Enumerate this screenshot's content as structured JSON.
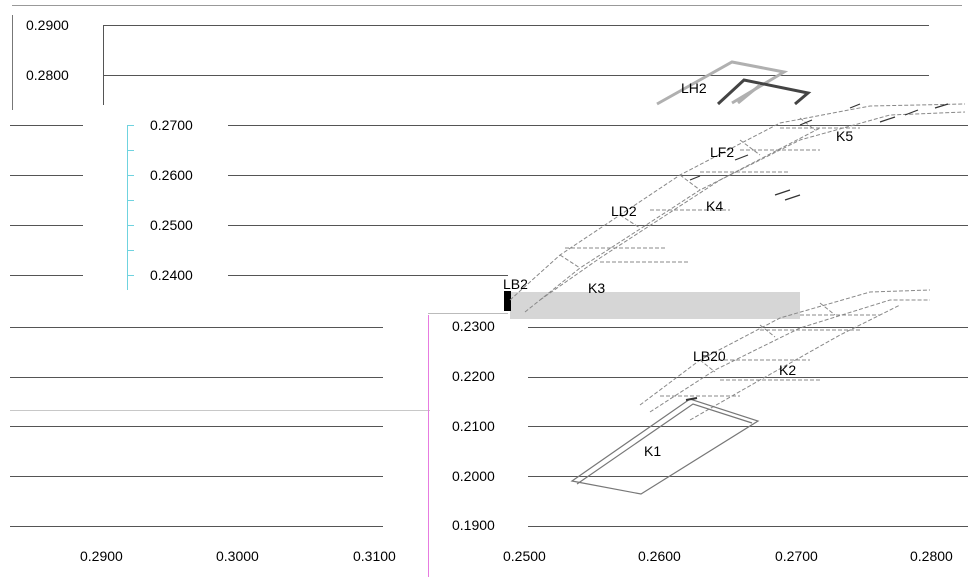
{
  "panels": {
    "back": {
      "y_ticks": [
        "0.2900",
        "0.2800"
      ],
      "x_ticks": [
        "0.2900",
        "0.3000",
        "0.3100"
      ]
    },
    "middle": {
      "y_ticks": [
        "0.2700",
        "0.2600",
        "0.2500",
        "0.2400"
      ]
    },
    "front": {
      "y_ticks": [
        "0.2300",
        "0.2200",
        "0.2100",
        "0.2000",
        "0.1900"
      ],
      "x_ticks": [
        "0.2500",
        "0.2600",
        "0.2700",
        "0.2800"
      ]
    }
  },
  "element_labels": [
    "LH2",
    "K5",
    "LF2",
    "K4",
    "LD2",
    "LB2",
    "K3",
    "LB20",
    "K2",
    "K1"
  ],
  "colors": {
    "gridline": "#555555",
    "axis_cyan": "#6fd3df",
    "axis_magenta": "#e77be0",
    "structure_gray": "#888888",
    "structure_dark": "#444444",
    "structure_light": "#b0b0b0",
    "selection_gray": "#d6d6d6",
    "cursor_black": "#000000"
  }
}
